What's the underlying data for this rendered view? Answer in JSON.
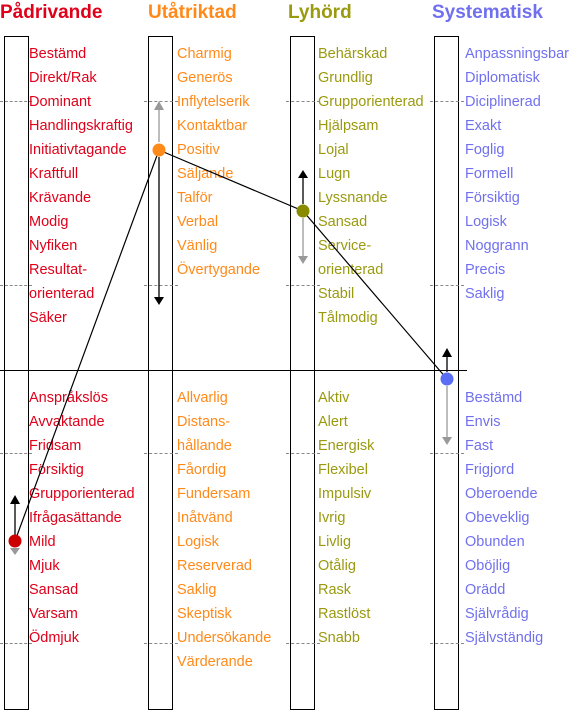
{
  "colors": {
    "padrivande": "#e0001a",
    "utatriktad": "#ff8a1a",
    "lyhord": "#9a9a10",
    "systematisk": "#7070ee",
    "dot_red": "#cc0000",
    "dot_orange": "#ff8a1a",
    "dot_olive": "#8a8a00",
    "dot_blue": "#5a6ef5",
    "arrow_gray": "#999999",
    "arrow_black": "#000000"
  },
  "columns": [
    {
      "key": "padrivande",
      "title": "Pådrivande",
      "upper_words": [
        "Bestämd",
        "Direkt/Rak",
        "Dominant",
        "Handlingskraftig",
        "Initiativtagande",
        "Kraftfull",
        "Krävande",
        "Modig",
        "Nyfiken",
        "Resultat-",
        "orienterad",
        "Säker"
      ],
      "lower_words": [
        "Anspråkslös",
        "Avvaktande",
        "Fridsam",
        "Försiktig",
        "Grupporienterad",
        "Ifrågasättande",
        "Mild",
        "Mjuk",
        "Sansad",
        "Varsam",
        "Ödmjuk"
      ]
    },
    {
      "key": "utatriktad",
      "title": "Utåtriktad",
      "upper_words": [
        "Charmig",
        "Generös",
        "Inflytelserik",
        "Kontaktbar",
        "Positiv",
        "Säljande",
        "Talför",
        "Verbal",
        "Vänlig",
        "Övertygande"
      ],
      "lower_words": [
        "Allvarlig",
        "Distans-",
        "hållande",
        "Fåordig",
        "Fundersam",
        "Inåtvänd",
        "Logisk",
        "Reserverad",
        "Saklig",
        "Skeptisk",
        "Undersökande",
        "Värderande"
      ]
    },
    {
      "key": "lyhord",
      "title": "Lyhörd",
      "upper_words": [
        "Behärskad",
        "Grundlig",
        "Grupporienterad",
        "Hjälpsam",
        "Lojal",
        "Lugn",
        "Lyssnande",
        "Sansad",
        "Service-",
        "orienterad",
        "Stabil",
        "Tålmodig"
      ],
      "lower_words": [
        "Aktiv",
        "Alert",
        "Energisk",
        "Flexibel",
        "Impulsiv",
        "Ivrig",
        "Livlig",
        "Otålig",
        "Rask",
        "Rastlöst",
        "Snabb"
      ]
    },
    {
      "key": "systematisk",
      "title": "Systematisk",
      "upper_words": [
        "Anpassningsbar",
        "Diplomatisk",
        "Diciplinerad",
        "Exakt",
        "Foglig",
        "Formell",
        "Försiktig",
        "Logisk",
        "Noggrann",
        "Precis",
        "Saklig"
      ],
      "lower_words": [
        "Bestämd",
        "Envis",
        "Fast",
        "Frigjord",
        "Oberoende",
        "Obeveklig",
        "Obunden",
        "Oböjlig",
        "Orädd",
        "Självrådig",
        "Självständig"
      ]
    }
  ]
}
